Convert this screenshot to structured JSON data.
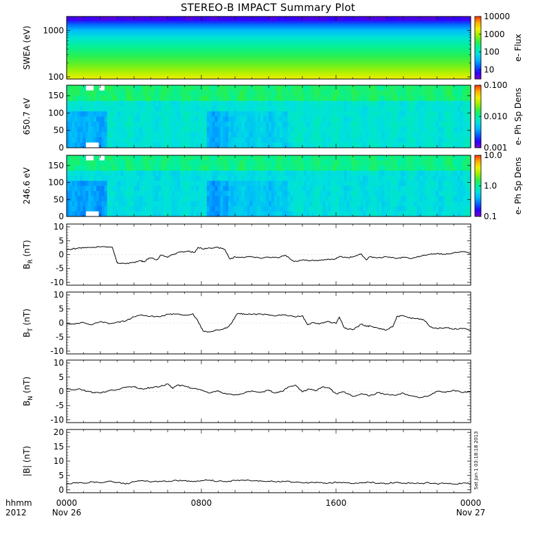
{
  "title": "STEREO-B IMPACT Summary Plot",
  "stamp": "Sat Jun  1 03:18:18 2013",
  "time_axis": {
    "unit_label": "hhmm",
    "year_label": "2012",
    "ticks": [
      {
        "hour": 0,
        "label": "0000",
        "sublabel": "Nov 26"
      },
      {
        "hour": 8,
        "label": "0800",
        "sublabel": ""
      },
      {
        "hour": 16,
        "label": "1600",
        "sublabel": ""
      },
      {
        "hour": 24,
        "label": "0000",
        "sublabel": "Nov 27"
      }
    ]
  },
  "colors": {
    "rainbow": [
      "#7a00c8",
      "#2a00ff",
      "#0060ff",
      "#00b4ff",
      "#00e0e0",
      "#00f0a0",
      "#30f040",
      "#a0f000",
      "#f0f000",
      "#ffb000",
      "#ff3000"
    ],
    "data_gap": "#ffffff",
    "line": "#000000"
  },
  "chart_data": [
    {
      "id": "swea",
      "type": "heatmap",
      "ylabel": "SWEA (eV)",
      "yscale": "log",
      "ylim": [
        90,
        2000
      ],
      "yticks": [
        {
          "v": 100,
          "label": "100"
        },
        {
          "v": 1000,
          "label": "1000"
        }
      ],
      "colorbar": {
        "label": "e- Flux",
        "scale": "log",
        "range": [
          3,
          10000
        ],
        "ticks": [
          {
            "v": 10000,
            "label": "10000"
          },
          {
            "v": 1000,
            "label": "1000"
          },
          {
            "v": 100,
            "label": "100"
          },
          {
            "v": 10,
            "label": "10"
          }
        ]
      },
      "energy_profile": [
        {
          "e": 90,
          "level": 0.8
        },
        {
          "e": 120,
          "level": 0.73
        },
        {
          "e": 180,
          "level": 0.65
        },
        {
          "e": 280,
          "level": 0.58
        },
        {
          "e": 450,
          "level": 0.51
        },
        {
          "e": 700,
          "level": 0.42
        },
        {
          "e": 1000,
          "level": 0.32
        },
        {
          "e": 1300,
          "level": 0.22
        },
        {
          "e": 1600,
          "level": 0.13
        },
        {
          "e": 2000,
          "level": 0.07
        }
      ]
    },
    {
      "id": "pad650",
      "type": "heatmap",
      "ylabel": "650.7 eV",
      "ylim": [
        0,
        180
      ],
      "yticks": [
        {
          "v": 0,
          "label": "0"
        },
        {
          "v": 50,
          "label": "50"
        },
        {
          "v": 100,
          "label": "100"
        },
        {
          "v": 150,
          "label": "150"
        }
      ],
      "colorbar": {
        "label": "e- Ph Sp Dens",
        "scale": "log",
        "range": [
          0.001,
          0.1
        ],
        "ticks": [
          {
            "v": 0.1,
            "label": "0.100"
          },
          {
            "v": 0.01,
            "label": "0.010"
          },
          {
            "v": 0.001,
            "label": "0.001"
          }
        ]
      },
      "gaps": [
        {
          "t0": 1.15,
          "t1": 1.9,
          "pa0": 0,
          "pa1": 15
        },
        {
          "t0": 1.15,
          "t1": 1.6,
          "pa0": 165,
          "pa1": 180
        },
        {
          "t0": 1.95,
          "t1": 2.25,
          "pa0": 165,
          "pa1": 180
        }
      ]
    },
    {
      "id": "pad246",
      "type": "heatmap",
      "ylabel": "246.6 eV",
      "ylim": [
        0,
        180
      ],
      "yticks": [
        {
          "v": 0,
          "label": "0"
        },
        {
          "v": 50,
          "label": "50"
        },
        {
          "v": 100,
          "label": "100"
        },
        {
          "v": 150,
          "label": "150"
        }
      ],
      "colorbar": {
        "label": "e- Ph Sp Dens",
        "scale": "log",
        "range": [
          0.1,
          10
        ],
        "ticks": [
          {
            "v": 10,
            "label": "10.0"
          },
          {
            "v": 1,
            "label": "1.0"
          },
          {
            "v": 0.1,
            "label": "0.1"
          }
        ]
      },
      "gaps": [
        {
          "t0": 1.15,
          "t1": 1.9,
          "pa0": 0,
          "pa1": 15
        },
        {
          "t0": 1.15,
          "t1": 1.6,
          "pa0": 165,
          "pa1": 180
        },
        {
          "t0": 1.95,
          "t1": 2.25,
          "pa0": 165,
          "pa1": 180
        }
      ]
    },
    {
      "id": "br",
      "type": "line",
      "ylabel": "B",
      "ylabel_sub": "R",
      "ylabel_unit": " (nT)",
      "ylim": [
        -11,
        11
      ],
      "yticks": [
        {
          "v": -10,
          "label": "-10"
        },
        {
          "v": -5,
          "label": "-5"
        },
        {
          "v": 0,
          "label": "0"
        },
        {
          "v": 5,
          "label": "5"
        },
        {
          "v": 10,
          "label": "10"
        }
      ],
      "x": [
        0,
        0.3,
        0.6,
        1.0,
        1.5,
        2.0,
        2.7,
        2.9,
        3.0,
        3.2,
        3.5,
        4.0,
        4.4,
        4.6,
        4.9,
        5.4,
        5.6,
        6.0,
        6.4,
        6.8,
        7.2,
        7.6,
        7.8,
        8.1,
        8.5,
        9.0,
        9.4,
        9.7,
        10.0,
        10.5,
        11.0,
        11.5,
        12.0,
        12.5,
        13.0,
        13.5,
        14.0,
        14.5,
        15.0,
        15.5,
        15.9,
        16.2,
        16.6,
        17.0,
        17.5,
        17.8,
        18.0,
        18.5,
        19.0,
        19.5,
        20.0,
        20.5,
        21.0,
        21.5,
        22.0,
        22.5,
        23.0,
        23.5,
        24.0
      ],
      "y": [
        1.8,
        2.0,
        2.2,
        2.4,
        2.6,
        2.8,
        2.7,
        -1.0,
        -3.0,
        -3.1,
        -3.3,
        -2.8,
        -2.2,
        -2.6,
        -1.2,
        -1.8,
        -0.2,
        -1.0,
        0.2,
        1.0,
        1.2,
        0.8,
        2.6,
        2.0,
        2.4,
        2.6,
        1.8,
        -1.6,
        -0.8,
        -1.1,
        -0.8,
        -1.3,
        -0.9,
        -1.1,
        -0.2,
        -2.5,
        -1.9,
        -2.2,
        -2.0,
        -1.6,
        -1.7,
        -0.7,
        -1.1,
        -0.8,
        0.2,
        -1.9,
        -0.8,
        -1.1,
        -0.8,
        -1.3,
        -1.0,
        -1.4,
        -0.6,
        0.1,
        0.4,
        0.1,
        0.6,
        1.0,
        0.3
      ]
    },
    {
      "id": "bt",
      "type": "line",
      "ylabel": "B",
      "ylabel_sub": "T",
      "ylabel_unit": " (nT)",
      "ylim": [
        -11,
        11
      ],
      "yticks": [
        {
          "v": -10,
          "label": "-10"
        },
        {
          "v": -5,
          "label": "-5"
        },
        {
          "v": 0,
          "label": "0"
        },
        {
          "v": 5,
          "label": "5"
        },
        {
          "v": 10,
          "label": "10"
        }
      ],
      "x": [
        0,
        0.5,
        1.0,
        1.5,
        2.0,
        2.5,
        3.0,
        3.5,
        4.0,
        4.5,
        5.0,
        5.5,
        6.0,
        6.5,
        7.0,
        7.5,
        7.8,
        8.1,
        8.5,
        9.0,
        9.5,
        9.8,
        10.1,
        10.5,
        11.0,
        11.5,
        12.0,
        12.5,
        13.0,
        13.5,
        14.0,
        14.3,
        14.6,
        15.0,
        15.5,
        16.0,
        16.2,
        16.5,
        17.0,
        17.5,
        17.8,
        18.0,
        18.5,
        19.0,
        19.4,
        19.6,
        19.9,
        20.3,
        20.8,
        21.2,
        21.6,
        22.0,
        22.5,
        23.0,
        23.5,
        24.0
      ],
      "y": [
        -0.2,
        -0.4,
        0.2,
        -0.6,
        0.5,
        -0.3,
        0.3,
        0.7,
        2.2,
        2.8,
        2.4,
        2.2,
        3.1,
        3.2,
        2.8,
        3.3,
        0.6,
        -2.8,
        -3.2,
        -2.5,
        -1.8,
        0.0,
        3.1,
        3.3,
        3.0,
        3.2,
        2.8,
        2.6,
        2.9,
        2.3,
        2.6,
        -0.6,
        0.2,
        -0.4,
        0.6,
        -0.2,
        2.1,
        -1.8,
        -2.4,
        -0.4,
        -1.2,
        -1.0,
        -1.8,
        -2.5,
        -1.0,
        2.2,
        2.6,
        1.8,
        1.6,
        1.2,
        -1.4,
        -2.0,
        -1.6,
        -2.2,
        -2.0,
        -2.6
      ]
    },
    {
      "id": "bn",
      "type": "line",
      "ylabel": "B",
      "ylabel_sub": "N",
      "ylabel_unit": " (nT)",
      "ylim": [
        -11,
        11
      ],
      "yticks": [
        {
          "v": -10,
          "label": "-10"
        },
        {
          "v": -5,
          "label": "-5"
        },
        {
          "v": 0,
          "label": "0"
        },
        {
          "v": 5,
          "label": "5"
        },
        {
          "v": 10,
          "label": "10"
        }
      ],
      "x": [
        0,
        0.4,
        0.8,
        1.2,
        1.6,
        2.0,
        2.5,
        3.0,
        3.5,
        4.0,
        4.5,
        5.0,
        5.5,
        6.0,
        6.3,
        6.6,
        7.0,
        7.5,
        8.0,
        8.5,
        9.0,
        9.5,
        10.0,
        10.5,
        11.0,
        11.5,
        12.0,
        12.4,
        12.8,
        13.2,
        13.6,
        14.0,
        14.4,
        14.8,
        15.2,
        15.6,
        16.0,
        16.5,
        17.0,
        17.5,
        18.0,
        18.5,
        19.0,
        19.5,
        20.0,
        20.5,
        21.0,
        21.5,
        22.0,
        22.5,
        23.0,
        23.5,
        24.0
      ],
      "y": [
        1.0,
        0.6,
        0.8,
        0.0,
        -0.4,
        -0.6,
        0.2,
        0.6,
        1.4,
        1.6,
        0.8,
        1.4,
        1.6,
        2.6,
        1.0,
        2.2,
        1.8,
        1.0,
        0.4,
        -0.6,
        0.2,
        -1.0,
        -1.2,
        -0.8,
        0.2,
        -0.4,
        0.4,
        -0.6,
        0.0,
        1.6,
        2.2,
        -0.2,
        0.8,
        0.2,
        1.6,
        1.2,
        -0.8,
        -0.2,
        -1.8,
        -0.8,
        -1.6,
        -0.4,
        -1.0,
        -1.4,
        -0.6,
        -1.6,
        -2.2,
        -1.6,
        0.0,
        -0.4,
        0.4,
        -0.4,
        0.0
      ]
    },
    {
      "id": "bmag",
      "type": "line",
      "ylabel": "|B| (nT)",
      "ylim": [
        -1,
        21
      ],
      "yticks": [
        {
          "v": 0,
          "label": "0"
        },
        {
          "v": 5,
          "label": "5"
        },
        {
          "v": 10,
          "label": "10"
        },
        {
          "v": 15,
          "label": "15"
        },
        {
          "v": 20,
          "label": "20"
        }
      ],
      "x": [
        0,
        0.5,
        1.0,
        1.5,
        2.0,
        2.5,
        3.0,
        3.5,
        4.0,
        4.5,
        5.0,
        5.5,
        6.0,
        6.5,
        7.0,
        7.5,
        8.0,
        8.5,
        9.0,
        9.5,
        10.0,
        10.5,
        11.0,
        11.5,
        12.0,
        12.5,
        13.0,
        13.5,
        14.0,
        14.5,
        15.0,
        15.5,
        16.0,
        16.5,
        17.0,
        17.5,
        18.0,
        18.5,
        19.0,
        19.5,
        20.0,
        20.5,
        21.0,
        21.5,
        22.0,
        22.5,
        23.0,
        23.5,
        24.0
      ],
      "y": [
        2.0,
        2.4,
        2.3,
        2.8,
        2.5,
        3.0,
        2.6,
        2.0,
        2.8,
        3.2,
        2.7,
        3.0,
        2.9,
        3.3,
        3.2,
        2.8,
        3.2,
        3.4,
        3.0,
        2.8,
        3.3,
        3.4,
        3.1,
        3.2,
        3.0,
        2.8,
        2.9,
        2.6,
        2.4,
        2.6,
        2.5,
        2.3,
        2.6,
        2.5,
        2.2,
        2.5,
        2.6,
        2.3,
        2.2,
        2.6,
        2.3,
        2.4,
        2.2,
        2.5,
        2.1,
        2.3,
        2.0,
        2.3,
        2.2
      ]
    }
  ]
}
